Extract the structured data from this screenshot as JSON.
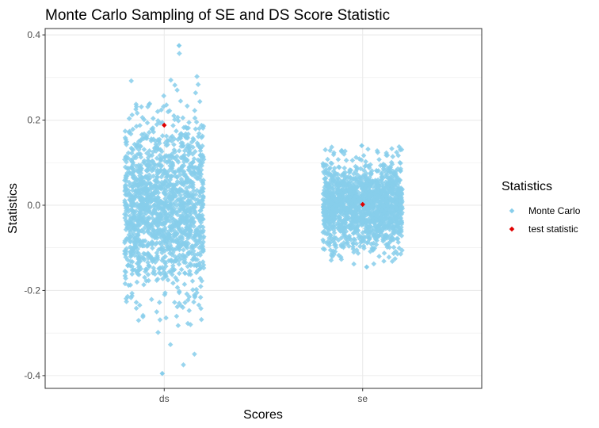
{
  "chart_data": {
    "type": "scatter",
    "title": "Monte Carlo Sampling of SE and DS Score Statistic",
    "xlabel": "Scores",
    "ylabel": "Statistics",
    "categories": [
      "ds",
      "se"
    ],
    "ylim": [
      -0.43,
      0.415
    ],
    "yticks": [
      0.4,
      0.2,
      0.0,
      -0.2,
      -0.4
    ],
    "ytick_labels": [
      "0.4",
      "0.2",
      "0.0",
      "-0.2",
      "-0.4"
    ],
    "grid": true,
    "legend": {
      "title": "Statistics",
      "placement": "right",
      "entries": [
        "Monte Carlo",
        "test statistic"
      ]
    },
    "series": [
      {
        "name": "Monte Carlo",
        "color": "#87CEEB",
        "groups": [
          {
            "category": "ds",
            "min": -0.395,
            "max": 0.375,
            "sd": 0.1,
            "jitter": 0.2
          },
          {
            "category": "se",
            "min": -0.145,
            "max": 0.14,
            "sd": 0.05,
            "jitter": 0.2
          }
        ]
      },
      {
        "name": "test statistic",
        "color": "#E00000",
        "points": [
          {
            "category": "ds",
            "x_offset": 0.0,
            "y": 0.188
          },
          {
            "category": "se",
            "x_offset": 0.0,
            "y": 0.002
          }
        ]
      }
    ]
  }
}
